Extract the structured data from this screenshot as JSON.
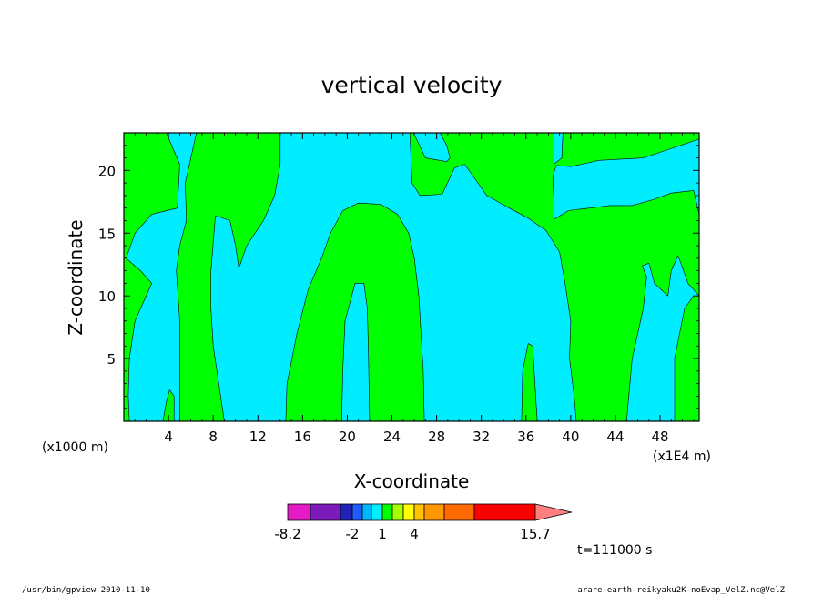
{
  "chart_data": {
    "type": "heatmap",
    "title": "vertical velocity",
    "xlabel": "X-coordinate",
    "ylabel": "Z-coordinate",
    "x_unit_left": "(x1000 m)",
    "x_unit_right": "(x1E4 m)",
    "xlim": [
      0,
      51.5
    ],
    "ylim": [
      0,
      23
    ],
    "x_ticks": [
      4,
      8,
      12,
      16,
      20,
      24,
      28,
      32,
      36,
      40,
      44,
      48
    ],
    "y_ticks": [
      5,
      10,
      15,
      20
    ],
    "background_color": "#00ecff",
    "regions": [
      {
        "level": "positive",
        "color": "#00ff00",
        "outline": [
          [
            0,
            0
          ],
          [
            0,
            23
          ],
          [
            3.8,
            23
          ],
          [
            5,
            20.5
          ],
          [
            4.8,
            17
          ],
          [
            2.5,
            16.5
          ],
          [
            1,
            15
          ],
          [
            0.2,
            13
          ],
          [
            1.5,
            12
          ],
          [
            2.5,
            11
          ],
          [
            1,
            8
          ],
          [
            0.5,
            5
          ],
          [
            0.4,
            2
          ],
          [
            0.5,
            0
          ]
        ]
      },
      {
        "level": "positive",
        "color": "#00ff00",
        "outline": [
          [
            3.5,
            0
          ],
          [
            3.8,
            1.5
          ],
          [
            4.1,
            2.5
          ],
          [
            4.5,
            2
          ],
          [
            4.5,
            0
          ]
        ]
      },
      {
        "level": "positive",
        "color": "#00ff00",
        "outline": [
          [
            5,
            0
          ],
          [
            5,
            8
          ],
          [
            4.7,
            12
          ],
          [
            5,
            14
          ],
          [
            5.6,
            16
          ],
          [
            5.5,
            19
          ],
          [
            6.5,
            23
          ],
          [
            14,
            23
          ],
          [
            14,
            20.5
          ],
          [
            13.5,
            18
          ],
          [
            12.5,
            16
          ],
          [
            11,
            14
          ],
          [
            10.3,
            12.2
          ],
          [
            10,
            14
          ],
          [
            9.5,
            16
          ],
          [
            8.2,
            16.4
          ],
          [
            7.8,
            12
          ],
          [
            7.8,
            9
          ],
          [
            8,
            6
          ],
          [
            8.5,
            3
          ],
          [
            9,
            0
          ]
        ]
      },
      {
        "level": "positive",
        "color": "#00ff00",
        "outline": [
          [
            14.5,
            0
          ],
          [
            14.6,
            3
          ],
          [
            15.5,
            7
          ],
          [
            16.5,
            10.5
          ],
          [
            17.7,
            13
          ],
          [
            18.5,
            15
          ],
          [
            19.6,
            16.8
          ],
          [
            21,
            17.4
          ],
          [
            23,
            17.3
          ],
          [
            24.5,
            16.5
          ],
          [
            25.5,
            15
          ],
          [
            26,
            13
          ],
          [
            26.4,
            10
          ],
          [
            26.6,
            7
          ],
          [
            26.8,
            4
          ],
          [
            26.9,
            0
          ],
          [
            22,
            0
          ],
          [
            21.9,
            5
          ],
          [
            21.8,
            9
          ],
          [
            21.5,
            11
          ],
          [
            20.7,
            11
          ],
          [
            19.8,
            8
          ],
          [
            19.6,
            4
          ],
          [
            19.5,
            0
          ]
        ]
      },
      {
        "level": "positive",
        "color": "#00ff00",
        "outline": [
          [
            25.6,
            23
          ],
          [
            25.8,
            19
          ],
          [
            26.5,
            18
          ],
          [
            28.5,
            18.1
          ],
          [
            29.6,
            20.2
          ],
          [
            30.5,
            20.5
          ],
          [
            32.5,
            18
          ],
          [
            34.5,
            17
          ],
          [
            36.2,
            16.2
          ],
          [
            37.8,
            15.2
          ],
          [
            39,
            13.5
          ],
          [
            39.5,
            11
          ],
          [
            40,
            8
          ],
          [
            39.9,
            5
          ],
          [
            40.3,
            2
          ],
          [
            40.5,
            0
          ],
          [
            45,
            0
          ],
          [
            45.5,
            5
          ],
          [
            46.5,
            9
          ],
          [
            46.8,
            11.5
          ],
          [
            46.4,
            12.4
          ],
          [
            47,
            12.6
          ],
          [
            47.5,
            11
          ],
          [
            48.7,
            10
          ],
          [
            49,
            12
          ],
          [
            49.6,
            13.2
          ],
          [
            49.9,
            12.5
          ],
          [
            50.5,
            11
          ],
          [
            51,
            10.5
          ],
          [
            51.5,
            10
          ],
          [
            51.5,
            16.5
          ],
          [
            51,
            18.4
          ],
          [
            49,
            18.2
          ],
          [
            47.5,
            17.7
          ],
          [
            45.5,
            17.2
          ],
          [
            43.5,
            17.2
          ],
          [
            41.7,
            17
          ],
          [
            39.8,
            16.8
          ],
          [
            38.5,
            16.1
          ],
          [
            38.5,
            17.5
          ],
          [
            38.4,
            19.5
          ],
          [
            38.7,
            20.4
          ],
          [
            40,
            20.3
          ],
          [
            42.5,
            20.8
          ],
          [
            46.5,
            21
          ],
          [
            51.5,
            22.5
          ],
          [
            51.5,
            23
          ],
          [
            39.3,
            23
          ],
          [
            39.2,
            21
          ],
          [
            38.5,
            20.5
          ],
          [
            38.5,
            23
          ],
          [
            28.3,
            23
          ],
          [
            28.9,
            22
          ],
          [
            29.2,
            21
          ],
          [
            28.9,
            20.7
          ],
          [
            27,
            21
          ],
          [
            26.2,
            22.5
          ],
          [
            25.9,
            23
          ]
        ]
      },
      {
        "level": "positive",
        "color": "#00ff00",
        "outline": [
          [
            35.6,
            0
          ],
          [
            35.7,
            4
          ],
          [
            36.2,
            6.2
          ],
          [
            36.6,
            6
          ],
          [
            36.8,
            3
          ],
          [
            37,
            0
          ]
        ]
      },
      {
        "level": "positive",
        "color": "#00ff00",
        "outline": [
          [
            49.3,
            0
          ],
          [
            49.3,
            5
          ],
          [
            50.2,
            9
          ],
          [
            51,
            10
          ],
          [
            51.5,
            10
          ],
          [
            51.5,
            0
          ]
        ]
      }
    ],
    "colorbar": {
      "colors": [
        "#e51cc6",
        "#7b1ab8",
        "#2121b5",
        "#1f5cff",
        "#00b8ff",
        "#00ecff",
        "#00ff00",
        "#a5ff00",
        "#ffff00",
        "#ffc300",
        "#ff9800",
        "#ff6a00",
        "#ff0000",
        "#ff7f7f",
        "#ffbaba"
      ],
      "labels": [
        "-8.2",
        "-2",
        "1",
        "4",
        "15.7"
      ]
    },
    "time_label": "t=111000 s"
  },
  "footer": {
    "left": "/usr/bin/gpview  2010-11-10",
    "right": "arare-earth-reikyaku2K-noEvap_VelZ.nc@VelZ"
  }
}
